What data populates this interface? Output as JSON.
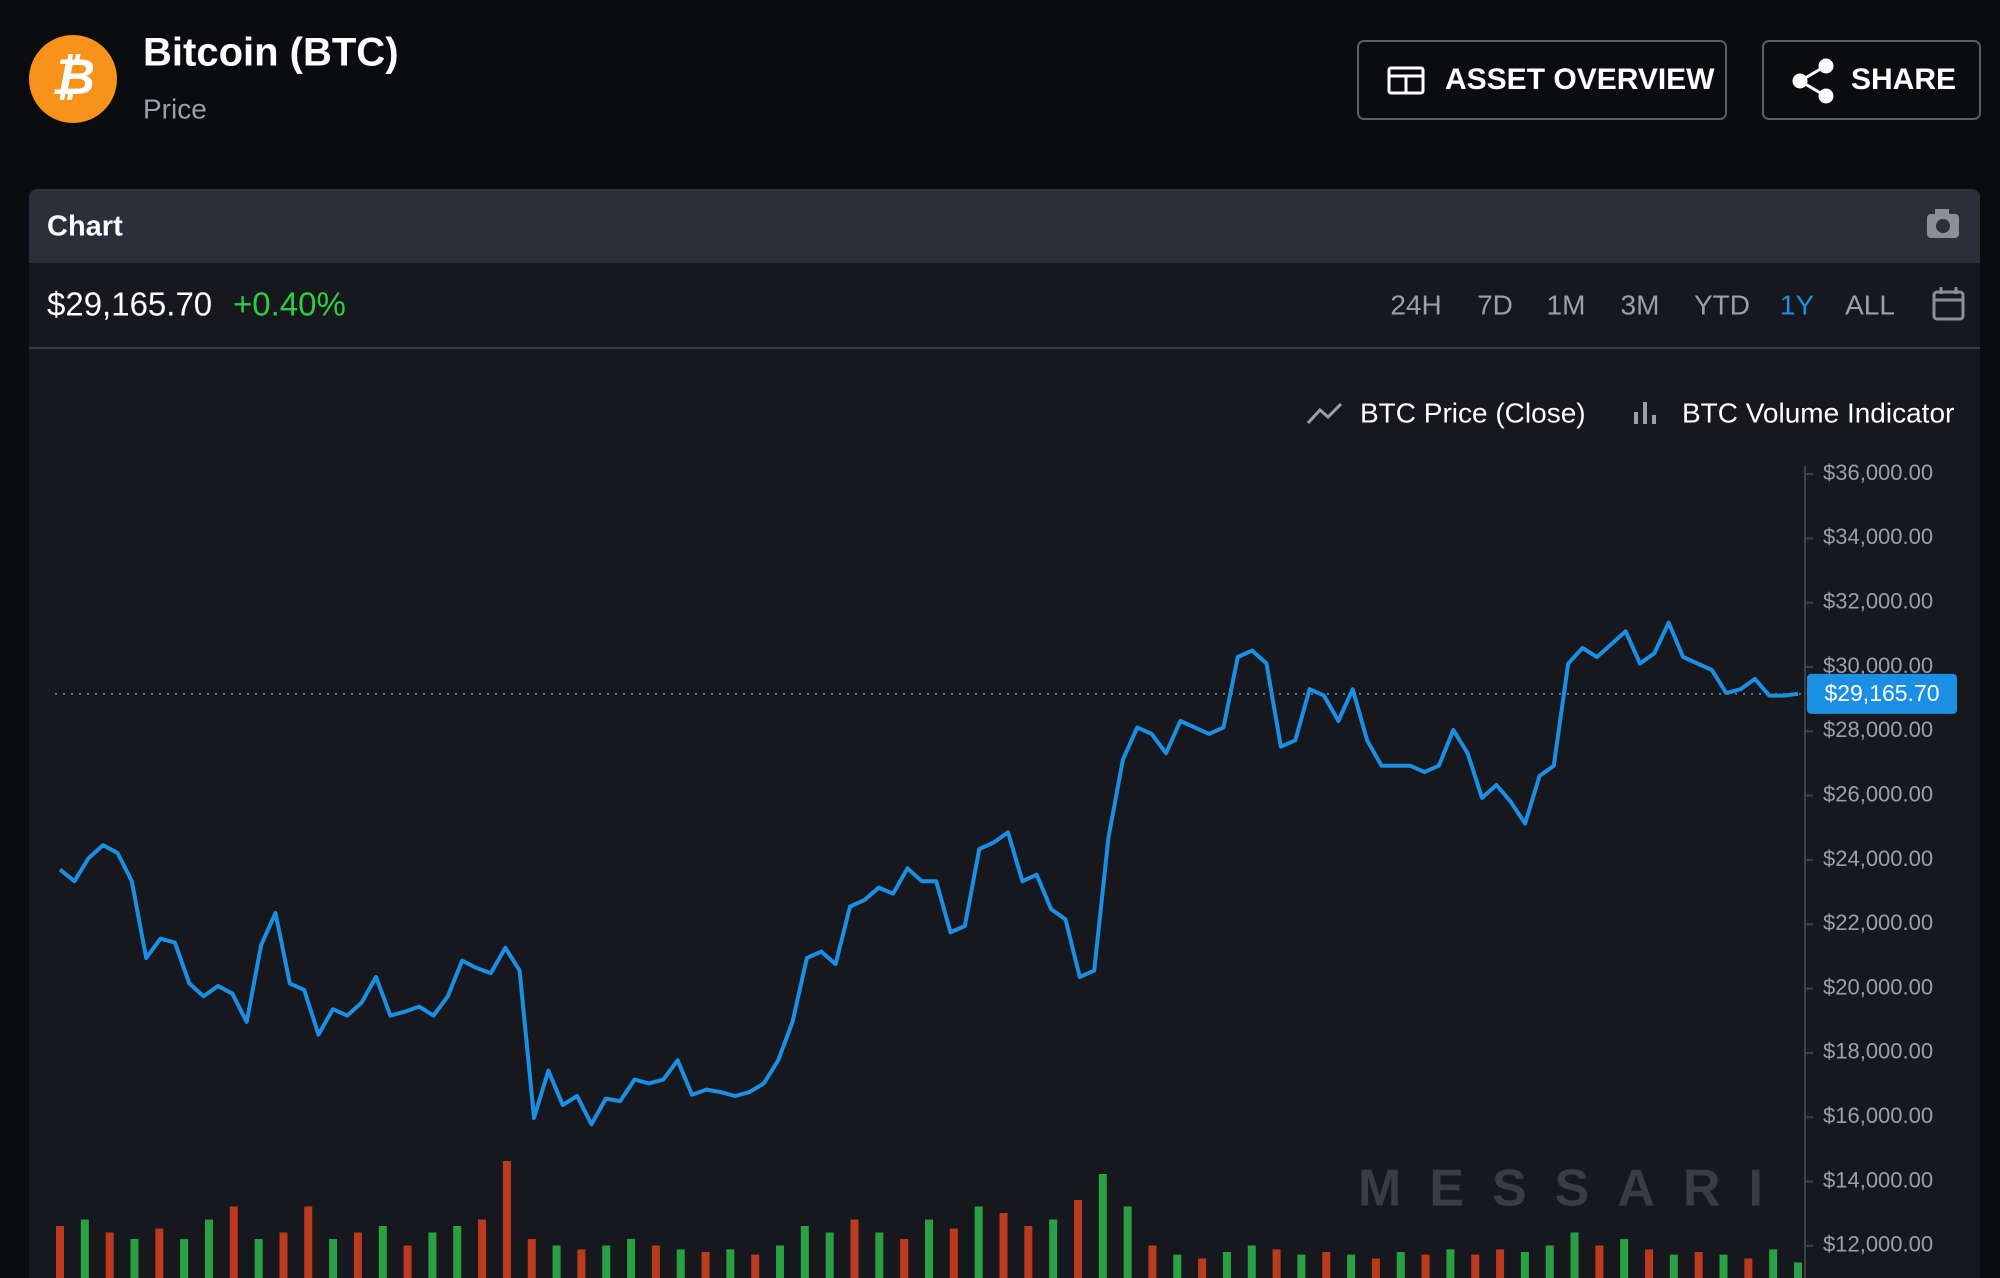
{
  "header": {
    "title": "Bitcoin (BTC)",
    "subtitle": "Price",
    "buttons": [
      "ASSET OVERVIEW",
      "SHARE"
    ]
  },
  "card": {
    "title": "Chart",
    "change": "+0.40%",
    "ranges": [
      "24H",
      "7D",
      "1M",
      "3M",
      "YTD",
      "1Y",
      "ALL"
    ],
    "active_range": 5
  },
  "chart_data": {
    "type": "line",
    "last_value": {
      "value": 29165.7,
      "label": "$29,165.70"
    },
    "watermark": "MESSARI",
    "ylim": [
      11000,
      36250
    ],
    "yticks": [
      {
        "value": 12000,
        "label": "$12,000.00"
      },
      {
        "value": 14000,
        "label": "$14,000.00"
      },
      {
        "value": 16000,
        "label": "$16,000.00"
      },
      {
        "value": 18000,
        "label": "$18,000.00"
      },
      {
        "value": 20000,
        "label": "$20,000.00"
      },
      {
        "value": 22000,
        "label": "$22,000.00"
      },
      {
        "value": 24000,
        "label": "$24,000.00"
      },
      {
        "value": 26000,
        "label": "$26,000.00"
      },
      {
        "value": 28000,
        "label": "$28,000.00"
      },
      {
        "value": 30000,
        "label": "$30,000.00"
      },
      {
        "value": 32000,
        "label": "$32,000.00"
      },
      {
        "value": 34000,
        "label": "$34,000.00"
      },
      {
        "value": 36000,
        "label": "$36,000.00"
      }
    ],
    "y2lim": [
      0,
      100
    ],
    "series": [
      {
        "name": "BTC Price (Close)",
        "color": "#1a8fe3",
        "values": [
          23700,
          23340,
          24060,
          24460,
          24220,
          23340,
          20950,
          21550,
          21430,
          20160,
          19760,
          20080,
          19840,
          18960,
          21350,
          22350,
          20160,
          19960,
          18570,
          19360,
          19160,
          19560,
          20360,
          19160,
          19280,
          19440,
          19160,
          19760,
          20870,
          20640,
          20480,
          21270,
          20560,
          15980,
          17450,
          16380,
          16660,
          15780,
          16580,
          16500,
          17170,
          17050,
          17170,
          17770,
          16700,
          16860,
          16780,
          16660,
          16780,
          17050,
          17770,
          18960,
          20950,
          21150,
          20760,
          22550,
          22750,
          23140,
          22950,
          23740,
          23340,
          23340,
          21750,
          21950,
          24340,
          24540,
          24860,
          23340,
          23540,
          22470,
          22150,
          20360,
          20560,
          24700,
          27120,
          28120,
          27920,
          27320,
          28320,
          28120,
          27920,
          28120,
          30310,
          30510,
          30110,
          27520,
          27720,
          29310,
          29110,
          28320,
          29310,
          27720,
          26930,
          26930,
          26930,
          26730,
          26930,
          28040,
          27320,
          25930,
          26330,
          25810,
          25130,
          26610,
          26930,
          30110,
          30590,
          30310,
          30710,
          31110,
          30110,
          30430,
          31380,
          30310,
          30110,
          29910,
          29190,
          29310,
          29630,
          29110,
          29110,
          29165.7
        ]
      },
      {
        "name": "BTC Volume Indicator",
        "axis": "y2",
        "values": [
          40,
          45,
          35,
          30,
          38,
          30,
          45,
          55,
          30,
          35,
          55,
          30,
          35,
          40,
          25,
          35,
          40,
          45,
          90,
          30,
          25,
          22,
          25,
          30,
          25,
          22,
          20,
          22,
          18,
          25,
          40,
          35,
          45,
          35,
          30,
          45,
          38,
          55,
          50,
          40,
          45,
          60,
          80,
          55,
          25,
          18,
          15,
          20,
          25,
          22,
          18,
          20,
          18,
          15,
          20,
          18,
          22,
          18,
          22,
          20,
          25,
          35,
          25,
          30,
          22,
          18,
          20,
          18,
          15,
          22,
          12
        ],
        "colors": [
          "#d9411e",
          "#2eb84b",
          "#d9411e",
          "#2eb84b",
          "#d9411e",
          "#2eb84b",
          "#2eb84b",
          "#d9411e",
          "#2eb84b",
          "#d9411e",
          "#d9411e",
          "#2eb84b",
          "#d9411e",
          "#2eb84b",
          "#d9411e",
          "#2eb84b",
          "#2eb84b",
          "#d9411e",
          "#d9411e",
          "#d9411e",
          "#2eb84b",
          "#d9411e",
          "#2eb84b",
          "#2eb84b",
          "#d9411e",
          "#2eb84b",
          "#d9411e",
          "#2eb84b",
          "#d9411e",
          "#2eb84b",
          "#2eb84b",
          "#2eb84b",
          "#d9411e",
          "#2eb84b",
          "#d9411e",
          "#2eb84b",
          "#d9411e",
          "#2eb84b",
          "#d9411e",
          "#d9411e",
          "#2eb84b",
          "#d9411e",
          "#2eb84b",
          "#2eb84b",
          "#d9411e",
          "#2eb84b",
          "#d9411e",
          "#2eb84b",
          "#2eb84b",
          "#d9411e",
          "#2eb84b",
          "#d9411e",
          "#2eb84b",
          "#d9411e",
          "#2eb84b",
          "#d9411e",
          "#2eb84b",
          "#d9411e",
          "#d9411e",
          "#2eb84b",
          "#2eb84b",
          "#2eb84b",
          "#d9411e",
          "#2eb84b",
          "#d9411e",
          "#2eb84b",
          "#d9411e",
          "#2eb84b",
          "#d9411e",
          "#2eb84b",
          "#2eb84b"
        ]
      }
    ]
  }
}
